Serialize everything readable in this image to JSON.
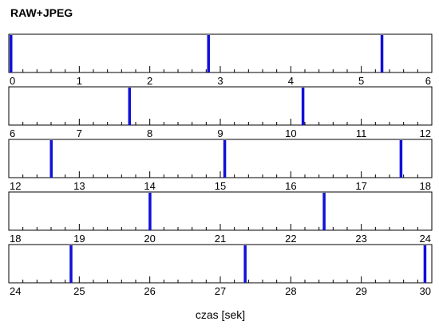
{
  "chart_data": {
    "type": "event-timeline",
    "title": "RAW+JPEG",
    "xlabel": "czas [sek]",
    "x_range": [
      0,
      30
    ],
    "rows": [
      {
        "range": [
          0,
          6
        ],
        "tick_labels": [
          "0",
          "1",
          "2",
          "3",
          "4",
          "5",
          "6"
        ]
      },
      {
        "range": [
          6,
          12
        ],
        "tick_labels": [
          "6",
          "7",
          "8",
          "9",
          "10",
          "11",
          "12"
        ]
      },
      {
        "range": [
          12,
          18
        ],
        "tick_labels": [
          "12",
          "13",
          "14",
          "15",
          "16",
          "17",
          "18"
        ]
      },
      {
        "range": [
          18,
          24
        ],
        "tick_labels": [
          "18",
          "19",
          "20",
          "21",
          "22",
          "23",
          "24"
        ]
      },
      {
        "range": [
          24,
          30
        ],
        "tick_labels": [
          "24",
          "25",
          "26",
          "27",
          "28",
          "29",
          "30"
        ]
      }
    ],
    "events": [
      0.0,
      2.83,
      5.29,
      7.71,
      10.17,
      12.6,
      15.06,
      17.56,
      20.0,
      22.47,
      24.88,
      27.35,
      29.9
    ],
    "event_color": "#1010d8",
    "minor_ticks_per_unit": 5,
    "grid": false
  }
}
